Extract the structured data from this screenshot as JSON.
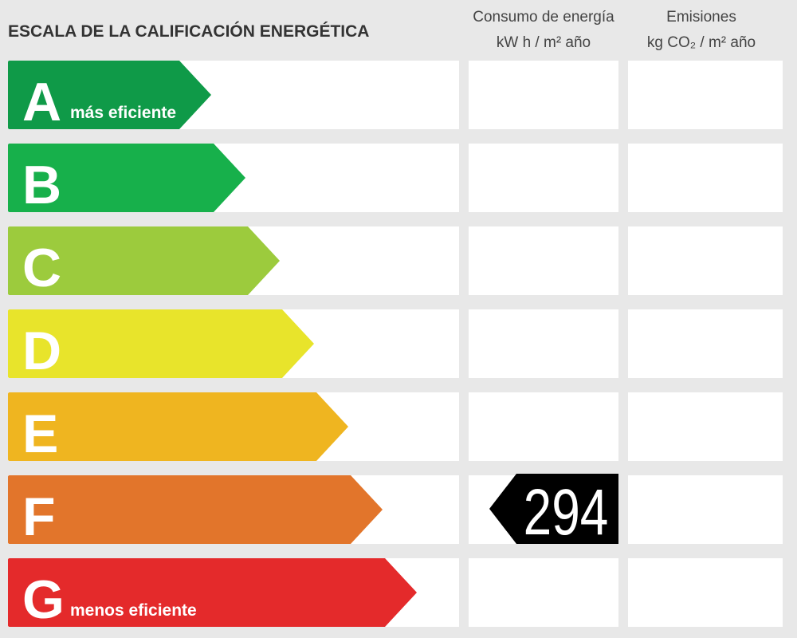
{
  "header": {
    "title": "ESCALA DE LA CALIFICACIÓN ENERGÉTICA",
    "columns": [
      {
        "title": "Consumo de energía",
        "unit": "kW h  / m² año"
      },
      {
        "title": "Emisiones",
        "unit": "kg CO₂  / m² año"
      }
    ]
  },
  "rows": [
    {
      "letter": "A",
      "label": "más eficiente",
      "color": "#0f9a48"
    },
    {
      "letter": "B",
      "color": "#17b04b"
    },
    {
      "letter": "C",
      "color": "#9ccb3d"
    },
    {
      "letter": "D",
      "color": "#e8e42b"
    },
    {
      "letter": "E",
      "color": "#efb520"
    },
    {
      "letter": "F",
      "color": "#e2752b",
      "consumption": 294
    },
    {
      "letter": "G",
      "label": "menos eficiente",
      "color": "#e42a2b"
    }
  ]
}
